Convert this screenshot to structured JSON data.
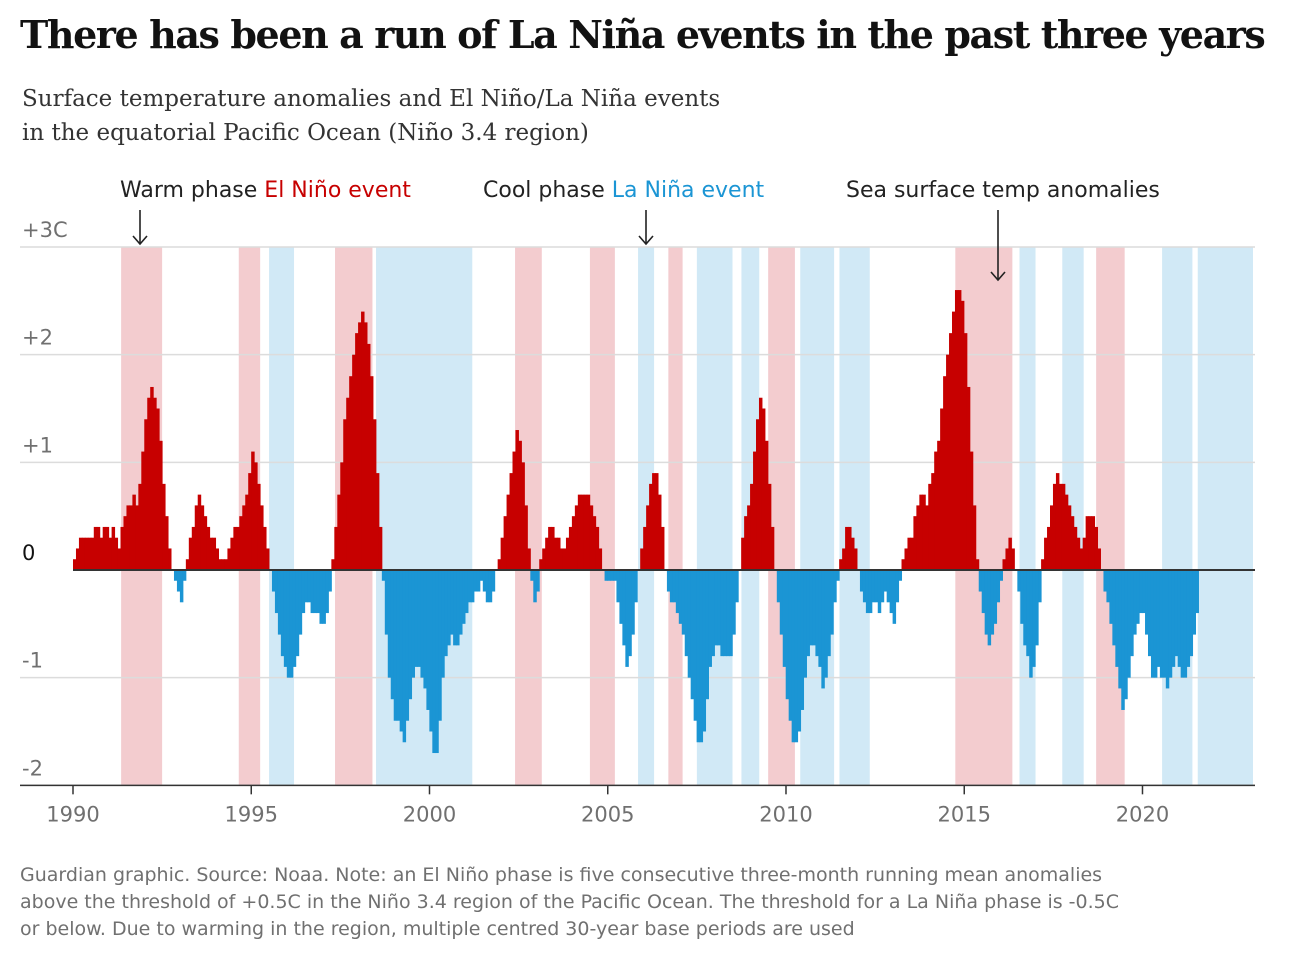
{
  "title": "There has been a run of La Niña events in the past three years",
  "subtitle": [
    "Surface temperature anomalies and El Niño/La Niña events",
    "in the equatorial Pacific Ocean (Niño 3.4 region)"
  ],
  "footnote": [
    "Guardian graphic. Source: Noaa. Note: an El Niño phase is five consecutive three-month running mean anomalies",
    "above the threshold of +0.5C in the Niño 3.4 region of the Pacific Ocean. The threshold for a La Niña phase is -0.5C",
    "or below. Due to warming in the region, multiple centred 30-year base periods are used"
  ],
  "annotations": {
    "warm_prefix": "Warm phase ",
    "warm_highlight": "El Niño event",
    "cool_prefix": "Cool phase ",
    "cool_highlight": "La Niña event",
    "sst": "Sea surface temp anomalies"
  },
  "colors": {
    "positive": "#c70000",
    "negative": "#1b95d4",
    "el_nino_band": "#f3cccf",
    "la_nina_band": "#d1e9f6",
    "grid": "#dcdcdc",
    "axis": "#333333"
  },
  "chart_data": {
    "type": "bar",
    "unit": "C",
    "xlim": [
      1990,
      2023.1
    ],
    "ylim": [
      -2,
      3
    ],
    "x_ticks": [
      1990,
      1995,
      2000,
      2005,
      2010,
      2015,
      2020
    ],
    "y_ticks": [
      {
        "value": 3,
        "label": "+3C"
      },
      {
        "value": 2,
        "label": "+2"
      },
      {
        "value": 1,
        "label": "+1"
      },
      {
        "value": 0,
        "label": "0"
      },
      {
        "value": -1,
        "label": "-1"
      },
      {
        "value": -2,
        "label": "-2"
      }
    ],
    "grid": true,
    "el_nino_events": [
      [
        1991.35,
        1992.5
      ],
      [
        1994.65,
        1995.25
      ],
      [
        1997.35,
        1998.4
      ],
      [
        2002.4,
        2003.15
      ],
      [
        2004.5,
        2005.2
      ],
      [
        2006.7,
        2007.1
      ],
      [
        2009.5,
        2010.25
      ],
      [
        2014.75,
        2016.35
      ],
      [
        2018.7,
        2019.5
      ]
    ],
    "la_nina_events": [
      [
        1995.5,
        1996.2
      ],
      [
        1998.5,
        2001.2
      ],
      [
        2005.85,
        2006.3
      ],
      [
        2007.5,
        2008.5
      ],
      [
        2008.75,
        2009.25
      ],
      [
        2010.4,
        2011.35
      ],
      [
        2011.5,
        2012.35
      ],
      [
        2016.55,
        2017.0
      ],
      [
        2017.75,
        2018.35
      ],
      [
        2020.55,
        2021.4
      ],
      [
        2021.55,
        2023.1
      ]
    ],
    "series_x_start": 1990.0,
    "series_x_step": 0.0833,
    "anomaly_values": [
      0.1,
      0.2,
      0.3,
      0.3,
      0.3,
      0.3,
      0.3,
      0.4,
      0.4,
      0.3,
      0.4,
      0.4,
      0.3,
      0.4,
      0.3,
      0.2,
      0.4,
      0.5,
      0.6,
      0.6,
      0.7,
      0.6,
      0.8,
      1.1,
      1.4,
      1.6,
      1.7,
      1.6,
      1.5,
      1.2,
      0.8,
      0.5,
      0.2,
      0.0,
      -0.1,
      -0.2,
      -0.3,
      -0.1,
      0.1,
      0.3,
      0.4,
      0.6,
      0.7,
      0.6,
      0.5,
      0.4,
      0.3,
      0.3,
      0.2,
      0.1,
      0.1,
      0.1,
      0.2,
      0.3,
      0.4,
      0.4,
      0.5,
      0.6,
      0.7,
      0.9,
      1.1,
      1.0,
      0.8,
      0.6,
      0.4,
      0.2,
      0.0,
      -0.2,
      -0.4,
      -0.6,
      -0.8,
      -0.9,
      -1.0,
      -1.0,
      -0.9,
      -0.8,
      -0.6,
      -0.4,
      -0.3,
      -0.3,
      -0.4,
      -0.4,
      -0.4,
      -0.5,
      -0.5,
      -0.4,
      -0.2,
      0.1,
      0.4,
      0.7,
      1.0,
      1.4,
      1.6,
      1.8,
      2.0,
      2.2,
      2.3,
      2.4,
      2.3,
      2.1,
      1.8,
      1.4,
      0.9,
      0.4,
      -0.1,
      -0.6,
      -1.0,
      -1.2,
      -1.4,
      -1.4,
      -1.5,
      -1.6,
      -1.4,
      -1.2,
      -1.0,
      -0.9,
      -0.9,
      -1.0,
      -1.1,
      -1.3,
      -1.5,
      -1.7,
      -1.7,
      -1.4,
      -1.0,
      -0.8,
      -0.7,
      -0.6,
      -0.7,
      -0.7,
      -0.6,
      -0.5,
      -0.4,
      -0.3,
      -0.3,
      -0.2,
      -0.2,
      -0.1,
      -0.2,
      -0.3,
      -0.3,
      -0.2,
      0.0,
      0.1,
      0.3,
      0.5,
      0.7,
      0.9,
      1.1,
      1.3,
      1.2,
      1.0,
      0.6,
      0.2,
      -0.1,
      -0.3,
      -0.2,
      0.1,
      0.2,
      0.3,
      0.4,
      0.4,
      0.3,
      0.3,
      0.2,
      0.2,
      0.3,
      0.4,
      0.5,
      0.6,
      0.7,
      0.7,
      0.7,
      0.7,
      0.6,
      0.5,
      0.4,
      0.2,
      0.0,
      -0.1,
      -0.1,
      -0.1,
      -0.1,
      -0.3,
      -0.5,
      -0.7,
      -0.9,
      -0.8,
      -0.6,
      -0.3,
      0.0,
      0.2,
      0.4,
      0.6,
      0.8,
      0.9,
      0.9,
      0.7,
      0.4,
      0.0,
      -0.2,
      -0.3,
      -0.3,
      -0.4,
      -0.5,
      -0.6,
      -0.8,
      -1.0,
      -1.2,
      -1.4,
      -1.6,
      -1.6,
      -1.5,
      -1.2,
      -0.9,
      -0.8,
      -0.7,
      -0.7,
      -0.8,
      -0.8,
      -0.8,
      -0.8,
      -0.6,
      -0.3,
      0.0,
      0.3,
      0.5,
      0.6,
      0.8,
      1.1,
      1.4,
      1.6,
      1.5,
      1.2,
      0.8,
      0.4,
      0.0,
      -0.3,
      -0.6,
      -0.9,
      -1.2,
      -1.4,
      -1.6,
      -1.6,
      -1.5,
      -1.3,
      -1.0,
      -0.8,
      -0.7,
      -0.7,
      -0.8,
      -0.9,
      -1.1,
      -1.0,
      -0.8,
      -0.6,
      -0.3,
      -0.1,
      0.1,
      0.2,
      0.4,
      0.4,
      0.3,
      0.2,
      0.0,
      -0.2,
      -0.3,
      -0.4,
      -0.4,
      -0.3,
      -0.3,
      -0.4,
      -0.3,
      -0.2,
      -0.3,
      -0.4,
      -0.5,
      -0.3,
      -0.1,
      0.1,
      0.2,
      0.3,
      0.3,
      0.5,
      0.6,
      0.7,
      0.7,
      0.6,
      0.8,
      0.9,
      1.1,
      1.2,
      1.5,
      1.8,
      2.0,
      2.2,
      2.4,
      2.6,
      2.6,
      2.5,
      2.2,
      1.7,
      1.1,
      0.6,
      0.1,
      -0.2,
      -0.4,
      -0.6,
      -0.7,
      -0.6,
      -0.5,
      -0.3,
      -0.1,
      0.1,
      0.2,
      0.3,
      0.2,
      0.0,
      -0.2,
      -0.5,
      -0.7,
      -0.8,
      -1.0,
      -0.9,
      -0.7,
      -0.3,
      0.1,
      0.3,
      0.4,
      0.6,
      0.8,
      0.9,
      0.8,
      0.8,
      0.7,
      0.6,
      0.5,
      0.4,
      0.3,
      0.2,
      0.3,
      0.5,
      0.5,
      0.5,
      0.4,
      0.2,
      0.0,
      -0.2,
      -0.3,
      -0.5,
      -0.7,
      -0.9,
      -1.1,
      -1.3,
      -1.2,
      -1.0,
      -0.8,
      -0.6,
      -0.5,
      -0.4,
      -0.4,
      -0.6,
      -0.8,
      -1.0,
      -1.0,
      -0.9,
      -1.0,
      -1.0,
      -1.1,
      -1.0,
      -0.9,
      -0.8,
      -0.9,
      -1.0,
      -1.0,
      -0.9,
      -0.8,
      -0.6,
      -0.4
    ]
  }
}
